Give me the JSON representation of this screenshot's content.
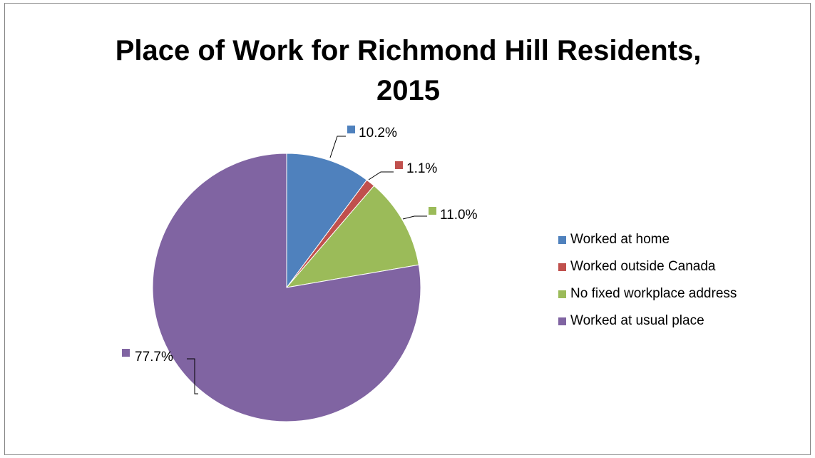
{
  "chart_data": {
    "type": "pie",
    "title_lines": [
      "Place of Work for Richmond Hill Residents,",
      "2015"
    ],
    "slices": [
      {
        "name": "Worked at home",
        "value": 10.2,
        "label": "10.2%",
        "color": "#4F81BD"
      },
      {
        "name": "Worked outside Canada",
        "value": 1.1,
        "label": "1.1%",
        "color": "#C0504D"
      },
      {
        "name": "No fixed workplace address",
        "value": 11.0,
        "label": "11.0%",
        "color": "#9BBB59"
      },
      {
        "name": "Worked at usual place",
        "value": 77.7,
        "label": "77.7%",
        "color": "#8064A2"
      }
    ],
    "legend_position": "right"
  }
}
